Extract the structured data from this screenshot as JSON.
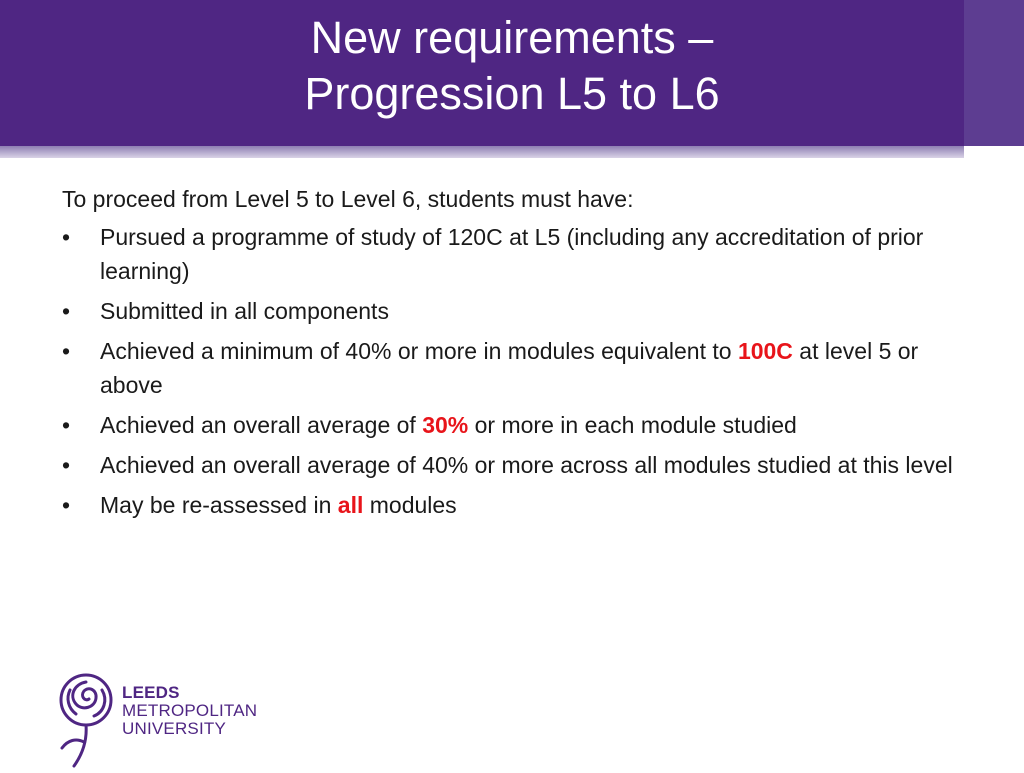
{
  "slide": {
    "title_line1": "New requirements –",
    "title_line2": "Progression L5 to L6",
    "intro": "To proceed from Level 5 to Level 6, students must have:",
    "bullet_char": "•",
    "bullets": [
      {
        "text": "Pursued a programme of study of 120C at L5 (including any accreditation of prior learning)"
      },
      {
        "text": "Submitted in all components"
      },
      {
        "before": "Achieved a minimum of 40% or more in modules equivalent to ",
        "highlight": "100C",
        "after": " at level 5 or above"
      },
      {
        "before": "Achieved an overall average of ",
        "highlight": "30%",
        "after": " or more in each module studied"
      },
      {
        "text": "Achieved an overall average of 40% or more across all modules studied at this level"
      },
      {
        "before": "May be re-assessed in ",
        "highlight": "all",
        "after": " modules"
      }
    ]
  },
  "logo": {
    "line1": "LEEDS",
    "line2": "METROPOLITAN",
    "line3": "UNIVERSITY",
    "icon": "rose-icon"
  },
  "colors": {
    "brand_purple": "#4f2683",
    "highlight_red": "#e8141a"
  }
}
